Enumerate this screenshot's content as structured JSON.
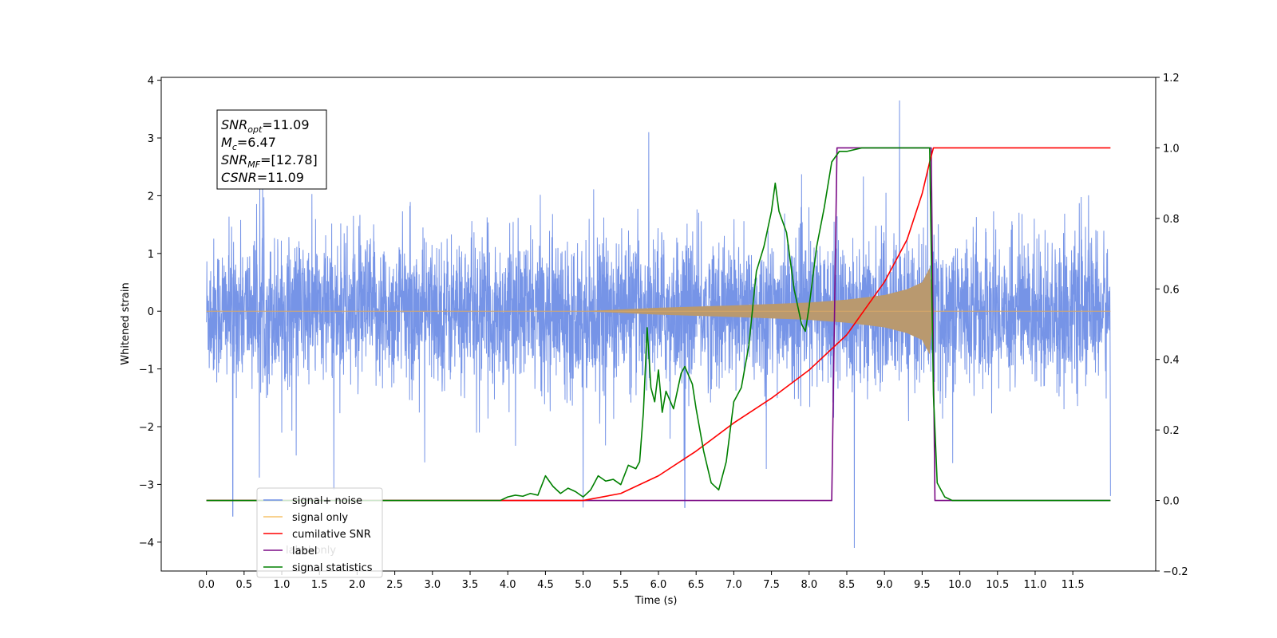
{
  "chart_data": {
    "type": "line",
    "xlabel": "Time (s)",
    "ylabel": "Whitened strain",
    "xlim": [
      -0.6,
      12.6
    ],
    "ylim": [
      -4.5,
      4.05
    ],
    "ylim_right": [
      -0.2,
      1.2
    ],
    "x_ticks": [
      "0.0",
      "0.5",
      "1.0",
      "1.5",
      "2.0",
      "2.5",
      "3.0",
      "3.5",
      "4.0",
      "4.5",
      "5.0",
      "5.5",
      "6.0",
      "6.5",
      "7.0",
      "7.5",
      "8.0",
      "8.5",
      "9.0",
      "9.5",
      "10.0",
      "10.5",
      "11.0",
      "11.5"
    ],
    "y_ticks": [
      "−4",
      "−3",
      "−2",
      "−1",
      "0",
      "1",
      "2",
      "3",
      "4"
    ],
    "y_ticks_right": [
      "−0.2",
      "0.0",
      "0.2",
      "0.4",
      "0.6",
      "0.8",
      "1.0",
      "1.2"
    ],
    "legend_position": "lower-left",
    "grid": false,
    "series": [
      {
        "name": "signal+ noise",
        "axis": "left",
        "color": "#6f8ee6",
        "description_values": "noise",
        "x_range": [
          0.0,
          12.0
        ],
        "envelope_approx": [
          -1.8,
          1.8
        ],
        "notable_peaks": [
          [
            9.2,
            3.65
          ],
          [
            8.6,
            -4.1
          ],
          [
            0.35,
            -3.55
          ],
          [
            5.0,
            -3.4
          ],
          [
            6.35,
            -3.4
          ]
        ]
      },
      {
        "name": "signal only",
        "axis": "left",
        "color": "#f5c36b",
        "x_range": [
          0.0,
          12.0
        ],
        "amplitude_envelope": [
          [
            0,
            0.0
          ],
          [
            5.0,
            0.0
          ],
          [
            5.5,
            0.03
          ],
          [
            6.0,
            0.06
          ],
          [
            7.0,
            0.1
          ],
          [
            8.0,
            0.15
          ],
          [
            8.5,
            0.2
          ],
          [
            9.0,
            0.28
          ],
          [
            9.3,
            0.38
          ],
          [
            9.5,
            0.5
          ],
          [
            9.6,
            0.75
          ],
          [
            9.65,
            0.0
          ],
          [
            12.0,
            0.0
          ]
        ]
      },
      {
        "name": "cumilative SNR",
        "axis": "right",
        "color": "#ff0000",
        "x": [
          0,
          5.0,
          5.5,
          6.0,
          6.5,
          7.0,
          7.5,
          8.0,
          8.5,
          9.0,
          9.3,
          9.5,
          9.6,
          9.65,
          9.7,
          12.0
        ],
        "y": [
          0,
          0.0,
          0.02,
          0.07,
          0.14,
          0.22,
          0.29,
          0.37,
          0.47,
          0.62,
          0.74,
          0.87,
          0.96,
          1.0,
          1.0,
          1.0
        ]
      },
      {
        "name": "label",
        "axis": "right",
        "color": "#7b0a85",
        "x": [
          0,
          8.3,
          8.37,
          9.62,
          9.67,
          12.0
        ],
        "y": [
          0,
          0,
          1.0,
          1.0,
          0,
          0
        ]
      },
      {
        "name": "signal statistics",
        "axis": "right",
        "color": "#008000",
        "x": [
          0,
          3.9,
          4.0,
          4.1,
          4.2,
          4.3,
          4.4,
          4.5,
          4.6,
          4.7,
          4.8,
          4.9,
          5.0,
          5.1,
          5.15,
          5.2,
          5.3,
          5.4,
          5.5,
          5.6,
          5.7,
          5.75,
          5.8,
          5.85,
          5.9,
          5.95,
          6.0,
          6.05,
          6.1,
          6.2,
          6.3,
          6.35,
          6.45,
          6.5,
          6.6,
          6.7,
          6.8,
          6.9,
          7.0,
          7.1,
          7.2,
          7.3,
          7.4,
          7.5,
          7.55,
          7.6,
          7.7,
          7.8,
          7.9,
          7.95,
          8.0,
          8.1,
          8.2,
          8.3,
          8.4,
          8.5,
          8.7,
          9.0,
          9.5,
          9.6,
          9.65,
          9.7,
          9.8,
          9.9,
          10.0,
          12.0
        ],
        "y": [
          0,
          0,
          0.01,
          0.015,
          0.012,
          0.02,
          0.015,
          0.07,
          0.04,
          0.02,
          0.035,
          0.025,
          0.01,
          0.03,
          0.05,
          0.07,
          0.055,
          0.06,
          0.045,
          0.1,
          0.09,
          0.11,
          0.25,
          0.49,
          0.32,
          0.28,
          0.37,
          0.25,
          0.31,
          0.26,
          0.36,
          0.38,
          0.33,
          0.26,
          0.14,
          0.05,
          0.03,
          0.11,
          0.28,
          0.32,
          0.44,
          0.65,
          0.72,
          0.82,
          0.9,
          0.82,
          0.76,
          0.6,
          0.5,
          0.48,
          0.55,
          0.72,
          0.83,
          0.96,
          0.99,
          0.99,
          1.0,
          1.0,
          1.0,
          1.0,
          0.3,
          0.05,
          0.01,
          0.0,
          0.0,
          0.0
        ]
      }
    ],
    "info_box": {
      "lines": [
        {
          "italic": "SNR",
          "sub": "opt",
          "rest": "=11.09"
        },
        {
          "italic": "M",
          "sub": "c",
          "rest": "=6.47"
        },
        {
          "italic": "SNR",
          "sub": "MF",
          "rest": "=[12.78]"
        },
        {
          "italic": "CSNR",
          "sub": "",
          "rest": "=11.09"
        }
      ]
    },
    "legend_extra_ghost": "label only"
  }
}
